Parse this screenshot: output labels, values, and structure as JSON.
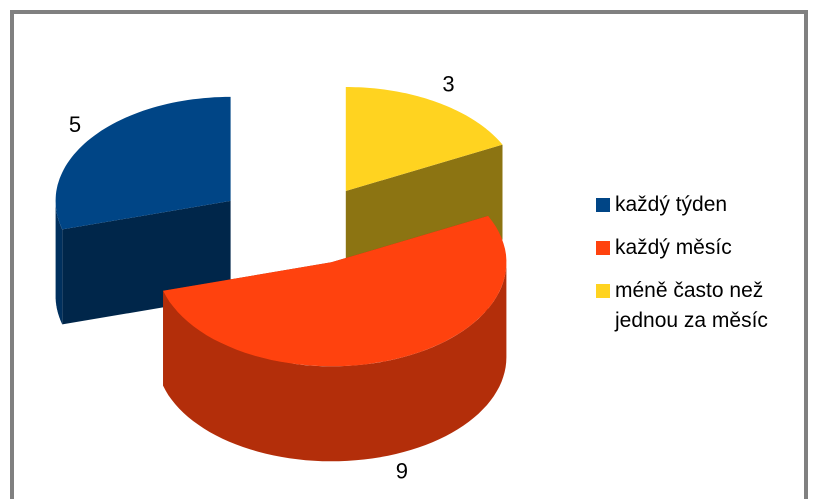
{
  "chart_data": {
    "type": "pie3d",
    "categories": [
      "každý týden",
      "každý měsíc",
      "méně často než jednou za měsíc"
    ],
    "values": [
      5,
      9,
      3
    ],
    "colors": [
      "#004586",
      "#ff420e",
      "#ffd320"
    ],
    "legend": "right"
  }
}
